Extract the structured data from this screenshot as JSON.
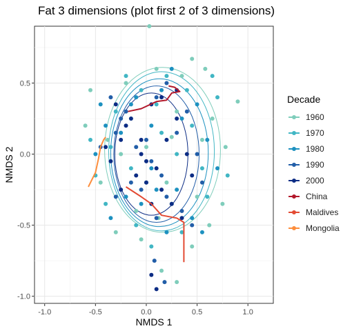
{
  "chart_data": {
    "type": "scatter",
    "title": "Fat 3 dimensions (plot first 2 of 3 dimensions)",
    "xlabel": "NMDS 1",
    "ylabel": "NMDS 2",
    "xlim": [
      -1.1,
      1.25
    ],
    "ylim": [
      -1.05,
      0.9
    ],
    "xticks": [
      -1.0,
      -0.5,
      0.0,
      0.5,
      1.0
    ],
    "xtick_labels": [
      "-1.0",
      "-0.5",
      "0.0",
      "0.5",
      "1.0"
    ],
    "yticks": [
      -1.0,
      -0.5,
      0.0,
      0.5
    ],
    "ytick_labels": [
      "-1.0",
      "-0.5",
      "0.0",
      "0.5"
    ],
    "grid": true,
    "legend_title": "Decade",
    "legend_position": "right",
    "series": [
      {
        "name": "1960",
        "color": "#7fcdbb",
        "kind": "points",
        "ellipse": {
          "cx": 0.16,
          "cy": 0.03,
          "rx": 0.57,
          "ry": 0.58
        },
        "points": [
          [
            0.03,
            0.9
          ],
          [
            0.9,
            0.37
          ],
          [
            0.58,
            0.6
          ],
          [
            0.45,
            0.67
          ],
          [
            -0.6,
            0.2
          ],
          [
            0.3,
            -0.9
          ],
          [
            -0.38,
            0.1
          ],
          [
            0.75,
            -0.35
          ],
          [
            0.15,
            -0.82
          ],
          [
            -0.2,
            0.5
          ],
          [
            0.55,
            0.1
          ],
          [
            -0.1,
            -0.4
          ],
          [
            0.3,
            0.3
          ],
          [
            -0.45,
            -0.2
          ],
          [
            0.62,
            -0.5
          ],
          [
            0.1,
            0.6
          ],
          [
            -0.3,
            -0.55
          ],
          [
            0.45,
            -0.65
          ],
          [
            0.0,
            0.05
          ],
          [
            0.2,
            -0.2
          ],
          [
            -0.55,
            0.45
          ],
          [
            0.78,
            0.05
          ],
          [
            0.35,
            0.55
          ],
          [
            -0.15,
            0.25
          ],
          [
            0.5,
            -0.3
          ],
          [
            -0.05,
            -0.6
          ],
          [
            0.25,
            0.12
          ],
          [
            0.65,
            0.25
          ],
          [
            -0.25,
            0.0
          ],
          [
            0.12,
            -0.45
          ]
        ]
      },
      {
        "name": "1970",
        "color": "#41b6c4",
        "kind": "points",
        "ellipse": {
          "cx": 0.15,
          "cy": 0.02,
          "rx": 0.52,
          "ry": 0.56
        },
        "points": [
          [
            -0.55,
            0.1
          ],
          [
            0.6,
            -0.3
          ],
          [
            0.2,
            0.55
          ],
          [
            -0.3,
            0.3
          ],
          [
            0.45,
            0.2
          ],
          [
            -0.1,
            -0.5
          ],
          [
            0.1,
            0.35
          ],
          [
            0.7,
            0.4
          ],
          [
            -0.4,
            -0.35
          ],
          [
            0.35,
            -0.55
          ],
          [
            -0.2,
            0.55
          ],
          [
            0.55,
            -0.1
          ],
          [
            0.0,
            -0.2
          ],
          [
            0.25,
            -0.35
          ],
          [
            -0.35,
            0.05
          ],
          [
            0.8,
            -0.15
          ],
          [
            0.15,
            0.15
          ],
          [
            -0.05,
            0.45
          ],
          [
            0.4,
            0.45
          ],
          [
            -0.5,
            -0.15
          ],
          [
            0.05,
            -0.65
          ],
          [
            0.65,
            0.55
          ],
          [
            -0.15,
            -0.1
          ],
          [
            0.3,
            0.0
          ]
        ]
      },
      {
        "name": "1980",
        "color": "#1d91c0",
        "kind": "points",
        "ellipse": {
          "cx": 0.13,
          "cy": 0.01,
          "rx": 0.48,
          "ry": 0.52
        },
        "points": [
          [
            -0.45,
            0.35
          ],
          [
            0.5,
            0.35
          ],
          [
            -0.2,
            -0.3
          ],
          [
            0.3,
            -0.25
          ],
          [
            0.05,
            0.2
          ],
          [
            -0.35,
            -0.45
          ],
          [
            0.6,
            0.1
          ],
          [
            -0.1,
            0.4
          ],
          [
            0.2,
            -0.55
          ],
          [
            0.45,
            -0.45
          ],
          [
            -0.5,
            0.0
          ],
          [
            0.15,
            0.45
          ],
          [
            -0.25,
            0.15
          ],
          [
            0.35,
            0.25
          ],
          [
            0.05,
            -0.1
          ],
          [
            0.7,
            -0.1
          ],
          [
            -0.05,
            -0.35
          ],
          [
            0.25,
            0.6
          ],
          [
            -0.4,
            0.2
          ],
          [
            0.55,
            -0.55
          ],
          [
            0.1,
            -0.25
          ],
          [
            -0.15,
            0.35
          ]
        ]
      },
      {
        "name": "1990",
        "color": "#225ea8",
        "kind": "points",
        "ellipse": {
          "cx": 0.1,
          "cy": 0.0,
          "rx": 0.42,
          "ry": 0.48
        },
        "points": [
          [
            -0.35,
            0.4
          ],
          [
            0.4,
            0.3
          ],
          [
            -0.15,
            -0.2
          ],
          [
            0.2,
            -0.3
          ],
          [
            0.0,
            0.1
          ],
          [
            -0.3,
            -0.3
          ],
          [
            0.5,
            0.0
          ],
          [
            -0.2,
            0.3
          ],
          [
            0.1,
            -0.45
          ],
          [
            0.35,
            -0.4
          ],
          [
            -0.45,
            0.05
          ],
          [
            0.1,
            0.4
          ],
          [
            -0.1,
            0.05
          ],
          [
            0.3,
            0.15
          ],
          [
            0.05,
            -0.05
          ],
          [
            0.55,
            -0.2
          ],
          [
            -0.05,
            -0.25
          ],
          [
            0.2,
            0.5
          ],
          [
            -0.3,
            0.15
          ],
          [
            0.45,
            -0.5
          ],
          [
            0.15,
            -0.15
          ],
          [
            -0.25,
            0.25
          ],
          [
            0.18,
            -0.9
          ],
          [
            0.08,
            -0.75
          ]
        ]
      },
      {
        "name": "2000",
        "color": "#0c2c84",
        "kind": "points",
        "ellipse": {
          "cx": 0.05,
          "cy": 0.0,
          "rx": 0.36,
          "ry": 0.43
        },
        "points": [
          [
            -0.3,
            0.35
          ],
          [
            0.3,
            0.25
          ],
          [
            -0.1,
            -0.15
          ],
          [
            0.15,
            -0.25
          ],
          [
            -0.05,
            0.1
          ],
          [
            -0.25,
            -0.25
          ],
          [
            0.4,
            0.0
          ],
          [
            -0.15,
            0.25
          ],
          [
            0.05,
            -0.35
          ],
          [
            0.25,
            -0.35
          ],
          [
            -0.4,
            0.05
          ],
          [
            0.05,
            0.35
          ],
          [
            -0.05,
            0.0
          ],
          [
            0.2,
            0.1
          ],
          [
            0.0,
            -0.05
          ],
          [
            0.45,
            -0.15
          ],
          [
            0.0,
            -0.2
          ],
          [
            0.15,
            0.4
          ],
          [
            -0.25,
            0.1
          ],
          [
            0.35,
            -0.45
          ],
          [
            0.1,
            -0.1
          ],
          [
            -0.2,
            0.2
          ],
          [
            0.1,
            -0.95
          ],
          [
            0.05,
            -0.85
          ],
          [
            -0.35,
            -0.05
          ],
          [
            0.3,
            0.45
          ]
        ]
      },
      {
        "name": "China",
        "color": "#b2182b",
        "kind": "line",
        "points": [
          [
            -0.18,
            0.3
          ],
          [
            -0.05,
            0.32
          ],
          [
            0.1,
            0.37
          ],
          [
            0.2,
            0.38
          ],
          [
            0.25,
            0.43
          ],
          [
            0.33,
            0.44
          ],
          [
            0.28,
            0.47
          ],
          [
            0.22,
            0.48
          ]
        ]
      },
      {
        "name": "Maldives",
        "color": "#e34a33",
        "kind": "line",
        "points": [
          [
            -0.2,
            -0.23
          ],
          [
            -0.05,
            -0.3
          ],
          [
            0.05,
            -0.35
          ],
          [
            0.15,
            -0.43
          ],
          [
            0.3,
            -0.45
          ],
          [
            0.37,
            -0.48
          ],
          [
            0.37,
            -0.6
          ],
          [
            0.37,
            -0.72
          ],
          [
            0.37,
            -0.76
          ]
        ]
      },
      {
        "name": "Mongolia",
        "color": "#fd8d3c",
        "kind": "line",
        "points": [
          [
            -0.57,
            -0.23
          ],
          [
            -0.5,
            -0.13
          ],
          [
            -0.47,
            -0.03
          ],
          [
            -0.45,
            0.05
          ],
          [
            -0.42,
            0.1
          ],
          [
            -0.4,
            0.12
          ]
        ]
      }
    ]
  }
}
